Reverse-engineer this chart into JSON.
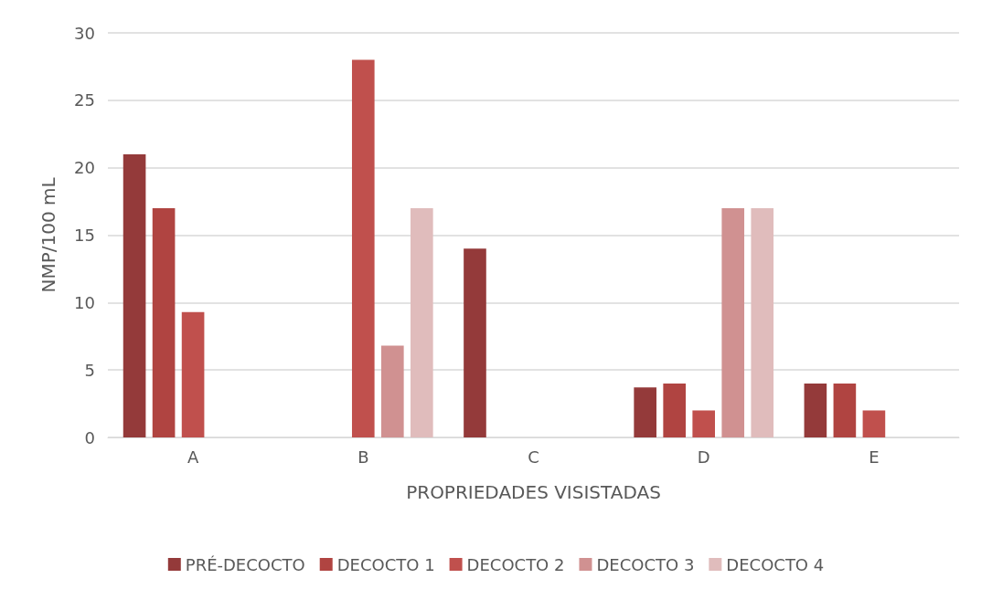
{
  "chart_data": {
    "type": "bar",
    "xlabel": "PROPRIEDADES VISISTADAS",
    "ylabel": "NMP/100 mL",
    "categories": [
      "A",
      "B",
      "C",
      "D",
      "E"
    ],
    "series": [
      {
        "name": "PRÉ-DECOCTO",
        "color": "#943a3a",
        "values": [
          21,
          null,
          14,
          3.7,
          4
        ]
      },
      {
        "name": "DECOCTO 1",
        "color": "#b04441",
        "values": [
          17,
          null,
          null,
          4,
          4
        ]
      },
      {
        "name": "DECOCTO 2",
        "color": "#c0504d",
        "values": [
          9.3,
          28,
          null,
          2,
          2
        ]
      },
      {
        "name": "DECOCTO 3",
        "color": "#d09191",
        "values": [
          null,
          6.8,
          null,
          17,
          null
        ]
      },
      {
        "name": "DECOCTO 4",
        "color": "#e0bcbc",
        "values": [
          null,
          17,
          null,
          17,
          null
        ]
      }
    ],
    "ylim": [
      0,
      30
    ],
    "yticks": [
      0,
      5,
      10,
      15,
      20,
      25,
      30
    ],
    "grid": "y",
    "legend": "bottom"
  }
}
